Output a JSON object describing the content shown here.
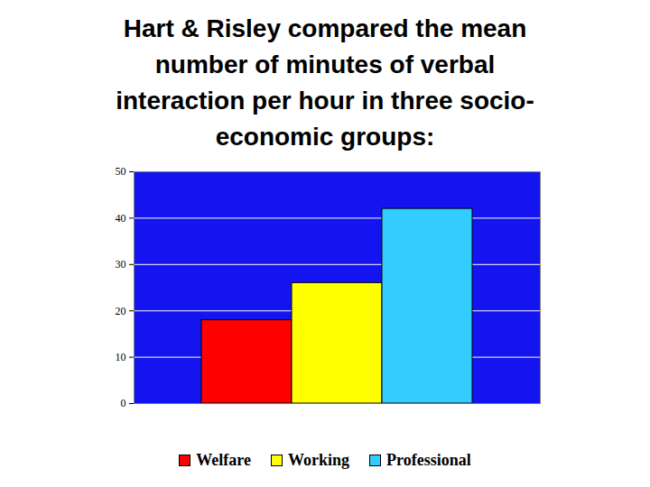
{
  "chart_data": {
    "type": "bar",
    "title": "Hart & Risley compared the mean number of minutes of verbal interaction per hour in three socio-economic groups:",
    "categories": [
      "Welfare",
      "Working",
      "Professional"
    ],
    "values": [
      18,
      26,
      42
    ],
    "colors": [
      "#ff0000",
      "#ffff00",
      "#33ccff"
    ],
    "ylim": [
      0,
      50
    ],
    "yticks": [
      0,
      10,
      20,
      30,
      40,
      50
    ],
    "grid": true,
    "legend": "bottom",
    "tick_labels": "y"
  }
}
